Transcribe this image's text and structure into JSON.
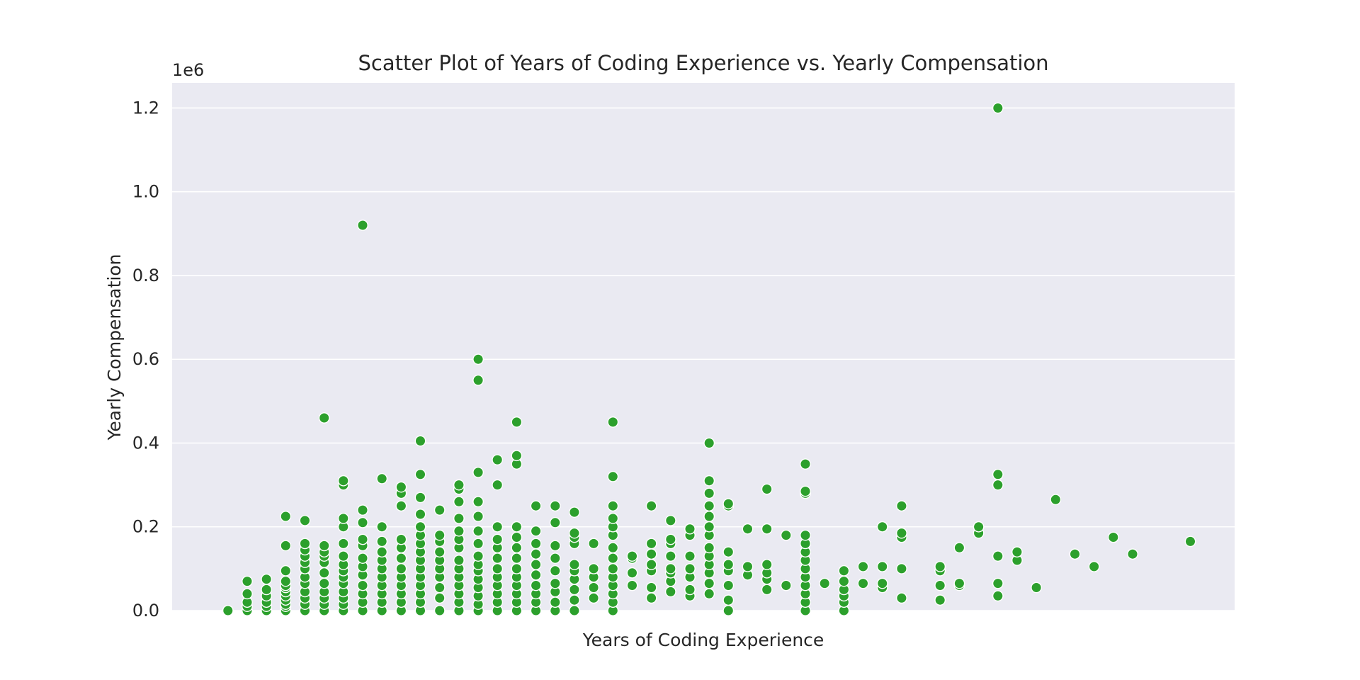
{
  "chart_data": {
    "type": "scatter",
    "title": "Scatter Plot of Years of Coding Experience vs. Yearly Compensation",
    "xlabel": "Years of Coding Experience",
    "ylabel": "Yearly Compensation",
    "y_offset_label": "1e6",
    "xlim": [
      -2.9,
      52.3
    ],
    "ylim": [
      0,
      1260000
    ],
    "yticks": [
      0,
      200000,
      400000,
      600000,
      800000,
      1000000,
      1200000
    ],
    "ytick_labels": [
      "0.0",
      "0.2",
      "0.4",
      "0.6",
      "0.8",
      "1.0",
      "1.2"
    ],
    "x_ticks_shown": false,
    "grid": "horizontal",
    "legend": "none",
    "colors": {
      "point": "#2ca02c",
      "point_edge": "#ffffff",
      "plot_background": "#eaeaf2",
      "grid": "#ffffff",
      "text": "#262626"
    },
    "x": [
      0,
      1,
      2,
      3,
      4,
      5,
      6,
      7,
      8,
      9,
      10,
      11,
      12,
      13,
      14,
      15,
      16,
      17,
      18,
      19,
      20,
      21,
      22,
      23,
      24,
      25,
      26,
      27,
      28,
      29,
      30,
      31,
      32,
      33,
      34,
      35,
      36,
      37,
      38,
      39,
      40,
      41,
      42,
      43,
      44,
      45,
      46,
      47,
      48,
      50
    ],
    "y_values": [
      [
        0,
        0
      ],
      [
        0,
        10000,
        20000,
        40000,
        70000
      ],
      [
        0,
        10000,
        20000,
        35000,
        50000,
        75000
      ],
      [
        0,
        10000,
        15000,
        25000,
        35000,
        45000,
        55000,
        60000,
        70000,
        95000,
        155000,
        225000
      ],
      [
        0,
        15000,
        30000,
        45000,
        65000,
        80000,
        100000,
        115000,
        130000,
        145000,
        160000,
        215000
      ],
      [
        0,
        15000,
        30000,
        45000,
        65000,
        90000,
        115000,
        130000,
        140000,
        155000,
        460000
      ],
      [
        0,
        15000,
        30000,
        45000,
        65000,
        80000,
        95000,
        110000,
        130000,
        160000,
        200000,
        220000,
        300000,
        310000
      ],
      [
        0,
        20000,
        40000,
        60000,
        85000,
        105000,
        125000,
        155000,
        170000,
        210000,
        240000,
        920000
      ],
      [
        0,
        20000,
        40000,
        60000,
        80000,
        100000,
        120000,
        140000,
        165000,
        200000,
        315000
      ],
      [
        0,
        20000,
        40000,
        60000,
        80000,
        100000,
        125000,
        150000,
        170000,
        250000,
        280000,
        295000
      ],
      [
        0,
        20000,
        40000,
        60000,
        80000,
        100000,
        120000,
        140000,
        160000,
        180000,
        200000,
        230000,
        270000,
        325000,
        405000
      ],
      [
        0,
        30000,
        55000,
        80000,
        100000,
        120000,
        140000,
        165000,
        180000,
        240000
      ],
      [
        0,
        20000,
        40000,
        60000,
        80000,
        100000,
        120000,
        150000,
        170000,
        190000,
        220000,
        260000,
        290000,
        300000
      ],
      [
        0,
        15000,
        35000,
        55000,
        75000,
        95000,
        110000,
        130000,
        160000,
        190000,
        225000,
        260000,
        330000,
        550000,
        600000
      ],
      [
        0,
        20000,
        40000,
        60000,
        80000,
        100000,
        125000,
        150000,
        170000,
        200000,
        300000,
        360000
      ],
      [
        0,
        20000,
        40000,
        60000,
        80000,
        100000,
        125000,
        150000,
        175000,
        200000,
        350000,
        370000,
        450000
      ],
      [
        0,
        20000,
        40000,
        60000,
        85000,
        110000,
        135000,
        160000,
        190000,
        250000
      ],
      [
        0,
        20000,
        45000,
        65000,
        95000,
        125000,
        155000,
        210000,
        250000
      ],
      [
        0,
        25000,
        50000,
        75000,
        95000,
        110000,
        160000,
        175000,
        185000,
        235000
      ],
      [
        30000,
        55000,
        80000,
        100000,
        160000
      ],
      [
        0,
        20000,
        40000,
        60000,
        80000,
        100000,
        125000,
        150000,
        180000,
        200000,
        220000,
        250000,
        320000,
        450000
      ],
      [
        60000,
        90000,
        125000,
        130000
      ],
      [
        30000,
        55000,
        95000,
        110000,
        135000,
        160000,
        250000
      ],
      [
        45000,
        70000,
        90000,
        100000,
        130000,
        160000,
        170000,
        215000
      ],
      [
        35000,
        50000,
        80000,
        100000,
        130000,
        180000,
        195000
      ],
      [
        40000,
        65000,
        90000,
        110000,
        130000,
        150000,
        180000,
        200000,
        225000,
        250000,
        280000,
        310000,
        400000
      ],
      [
        0,
        25000,
        60000,
        95000,
        110000,
        140000,
        250000,
        255000
      ],
      [
        85000,
        105000,
        195000
      ],
      [
        50000,
        75000,
        90000,
        110000,
        195000,
        290000
      ],
      [
        60000,
        180000
      ],
      [
        0,
        20000,
        40000,
        60000,
        80000,
        100000,
        120000,
        140000,
        160000,
        180000,
        280000,
        285000,
        350000
      ],
      [
        65000
      ],
      [
        0,
        20000,
        35000,
        50000,
        70000,
        95000
      ],
      [
        65000,
        105000
      ],
      [
        55000,
        65000,
        105000,
        200000
      ],
      [
        30000,
        100000,
        175000,
        185000,
        250000
      ],
      [],
      [
        25000,
        60000,
        95000,
        105000
      ],
      [
        60000,
        65000,
        150000
      ],
      [
        185000,
        200000
      ],
      [
        35000,
        65000,
        130000,
        300000,
        325000,
        1200000
      ],
      [
        120000,
        140000
      ],
      [
        55000
      ],
      [
        265000
      ],
      [
        135000
      ],
      [
        105000
      ],
      [
        175000
      ],
      [
        135000
      ],
      [],
      [
        165000
      ]
    ]
  }
}
